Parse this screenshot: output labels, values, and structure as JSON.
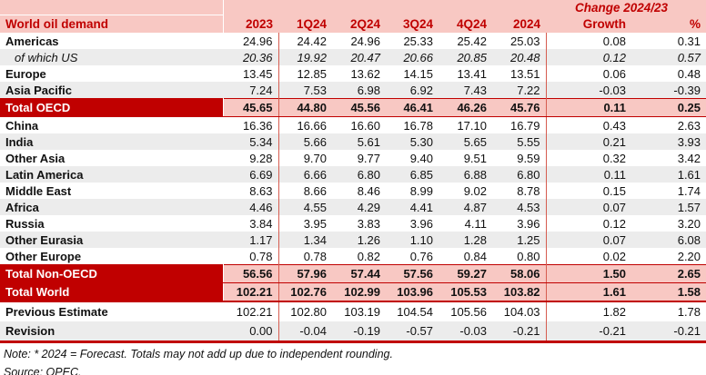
{
  "chart_data": {
    "type": "table",
    "title": "World oil demand",
    "change_header": "Change 2024/23",
    "columns": [
      "2023",
      "1Q24",
      "2Q24",
      "3Q24",
      "4Q24",
      "2024",
      "Growth",
      "%"
    ],
    "rows": [
      {
        "label": "Americas",
        "style": "normal",
        "values": [
          "24.96",
          "24.42",
          "24.96",
          "25.33",
          "25.42",
          "25.03",
          "0.08",
          "0.31"
        ]
      },
      {
        "label": "of which US",
        "style": "sub",
        "values": [
          "20.36",
          "19.92",
          "20.47",
          "20.66",
          "20.85",
          "20.48",
          "0.12",
          "0.57"
        ]
      },
      {
        "label": "Europe",
        "style": "normal",
        "values": [
          "13.45",
          "12.85",
          "13.62",
          "14.15",
          "13.41",
          "13.51",
          "0.06",
          "0.48"
        ]
      },
      {
        "label": "Asia Pacific",
        "style": "normal",
        "values": [
          "7.24",
          "7.53",
          "6.98",
          "6.92",
          "7.43",
          "7.22",
          "-0.03",
          "-0.39"
        ]
      },
      {
        "label": "Total OECD",
        "style": "total",
        "values": [
          "45.65",
          "44.80",
          "45.56",
          "46.41",
          "46.26",
          "45.76",
          "0.11",
          "0.25"
        ]
      },
      {
        "label": "China",
        "style": "normal",
        "values": [
          "16.36",
          "16.66",
          "16.60",
          "16.78",
          "17.10",
          "16.79",
          "0.43",
          "2.63"
        ]
      },
      {
        "label": "India",
        "style": "normal",
        "values": [
          "5.34",
          "5.66",
          "5.61",
          "5.30",
          "5.65",
          "5.55",
          "0.21",
          "3.93"
        ]
      },
      {
        "label": "Other Asia",
        "style": "normal",
        "values": [
          "9.28",
          "9.70",
          "9.77",
          "9.40",
          "9.51",
          "9.59",
          "0.32",
          "3.42"
        ]
      },
      {
        "label": "Latin America",
        "style": "normal",
        "values": [
          "6.69",
          "6.66",
          "6.80",
          "6.85",
          "6.88",
          "6.80",
          "0.11",
          "1.61"
        ]
      },
      {
        "label": "Middle East",
        "style": "normal",
        "values": [
          "8.63",
          "8.66",
          "8.46",
          "8.99",
          "9.02",
          "8.78",
          "0.15",
          "1.74"
        ]
      },
      {
        "label": "Africa",
        "style": "normal",
        "values": [
          "4.46",
          "4.55",
          "4.29",
          "4.41",
          "4.87",
          "4.53",
          "0.07",
          "1.57"
        ]
      },
      {
        "label": "Russia",
        "style": "normal",
        "values": [
          "3.84",
          "3.95",
          "3.83",
          "3.96",
          "4.11",
          "3.96",
          "0.12",
          "3.20"
        ]
      },
      {
        "label": "Other Eurasia",
        "style": "normal",
        "values": [
          "1.17",
          "1.34",
          "1.26",
          "1.10",
          "1.28",
          "1.25",
          "0.07",
          "6.08"
        ]
      },
      {
        "label": "Other Europe",
        "style": "normal",
        "values": [
          "0.78",
          "0.78",
          "0.82",
          "0.76",
          "0.84",
          "0.80",
          "0.02",
          "2.20"
        ]
      },
      {
        "label": "Total Non-OECD",
        "style": "total",
        "values": [
          "56.56",
          "57.96",
          "57.44",
          "57.56",
          "59.27",
          "58.06",
          "1.50",
          "2.65"
        ]
      },
      {
        "label": "Total World",
        "style": "total-world",
        "values": [
          "102.21",
          "102.76",
          "102.99",
          "103.96",
          "105.53",
          "103.82",
          "1.61",
          "1.58"
        ]
      },
      {
        "label": "Previous Estimate",
        "style": "estimate",
        "values": [
          "102.21",
          "102.80",
          "103.19",
          "104.54",
          "105.56",
          "104.03",
          "1.82",
          "1.78"
        ]
      },
      {
        "label": "Revision",
        "style": "revision",
        "values": [
          "0.00",
          "-0.04",
          "-0.19",
          "-0.57",
          "-0.03",
          "-0.21",
          "-0.21",
          "-0.21"
        ]
      }
    ],
    "notes": {
      "note": "Note: * 2024 = Forecast. Totals may not add up due to independent rounding.",
      "source": "Source: OPEC."
    }
  },
  "colors": {
    "header_red": "#c00000",
    "header_pink": "#f8c8c3",
    "zebra_gray": "#ececec",
    "separator_red": "#d65c50",
    "header_text_red": "#c00000",
    "title_text": "#ffffff"
  }
}
